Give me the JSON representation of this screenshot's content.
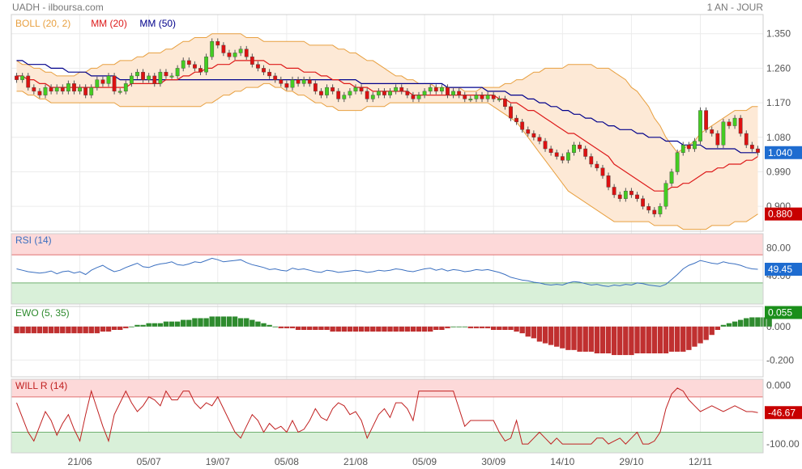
{
  "header": {
    "symbol_source": "UADH - ilboursa.com",
    "period": "1 AN - JOUR"
  },
  "colors": {
    "boll": "#e8a040",
    "boll_fill": "#fde9d6",
    "mm20": "#dd1a1a",
    "mm50": "#00008b",
    "candle_up": "#44cc22",
    "candle_down": "#dd1111",
    "rsi": "#3a6fc0",
    "ewo_pos": "#2e8b2e",
    "ewo_neg": "#c03030",
    "willr": "#c02020",
    "zone_red": "#fdd9d9",
    "zone_green": "#d9f0d9",
    "badge_blue": "#1e6cd0",
    "badge_red": "#c80000",
    "badge_green": "#1b8f1b"
  },
  "chart_data": [
    {
      "type": "candlestick",
      "name": "price",
      "legend": [
        {
          "label": "BOLL (20, 2)",
          "color": "#e8a040"
        },
        {
          "label": "MM (20)",
          "color": "#dd1a1a"
        },
        {
          "label": "MM (50)",
          "color": "#00008b"
        }
      ],
      "y_ticks": [
        "1.350",
        "1.260",
        "1.170",
        "1.080",
        "0.990",
        "0.900"
      ],
      "ylim": [
        0.835,
        1.4
      ],
      "last_price_label": "1.040",
      "low_label": "0.880",
      "x_ticks": [
        {
          "index": 11,
          "label": "21/06"
        },
        {
          "index": 23,
          "label": "05/07"
        },
        {
          "index": 35,
          "label": "19/07"
        },
        {
          "index": 47,
          "label": "05/08"
        },
        {
          "index": 59,
          "label": "21/08"
        },
        {
          "index": 71,
          "label": "05/09"
        },
        {
          "index": 83,
          "label": "30/09"
        },
        {
          "index": 95,
          "label": "14/10"
        },
        {
          "index": 107,
          "label": "29/10"
        },
        {
          "index": 119,
          "label": "12/11"
        }
      ],
      "close": [
        1.23,
        1.24,
        1.21,
        1.2,
        1.19,
        1.21,
        1.2,
        1.21,
        1.2,
        1.22,
        1.2,
        1.21,
        1.19,
        1.21,
        1.23,
        1.22,
        1.24,
        1.2,
        1.2,
        1.22,
        1.24,
        1.25,
        1.23,
        1.24,
        1.22,
        1.25,
        1.24,
        1.24,
        1.26,
        1.28,
        1.27,
        1.26,
        1.25,
        1.29,
        1.33,
        1.32,
        1.3,
        1.29,
        1.3,
        1.31,
        1.29,
        1.27,
        1.26,
        1.25,
        1.24,
        1.23,
        1.22,
        1.21,
        1.23,
        1.22,
        1.23,
        1.22,
        1.2,
        1.19,
        1.21,
        1.2,
        1.18,
        1.19,
        1.2,
        1.21,
        1.2,
        1.18,
        1.19,
        1.2,
        1.19,
        1.2,
        1.21,
        1.2,
        1.19,
        1.18,
        1.19,
        1.2,
        1.21,
        1.2,
        1.21,
        1.19,
        1.2,
        1.19,
        1.18,
        1.18,
        1.19,
        1.18,
        1.19,
        1.18,
        1.18,
        1.16,
        1.13,
        1.12,
        1.1,
        1.09,
        1.08,
        1.07,
        1.05,
        1.04,
        1.03,
        1.02,
        1.04,
        1.06,
        1.05,
        1.03,
        1.01,
        1.0,
        0.98,
        0.95,
        0.93,
        0.92,
        0.94,
        0.93,
        0.92,
        0.9,
        0.89,
        0.88,
        0.9,
        0.96,
        0.99,
        1.04,
        1.06,
        1.05,
        1.07,
        1.15,
        1.1,
        1.09,
        1.06,
        1.12,
        1.11,
        1.13,
        1.09,
        1.06,
        1.05,
        1.04
      ],
      "mm20": [
        1.24,
        1.24,
        1.23,
        1.23,
        1.22,
        1.22,
        1.21,
        1.21,
        1.21,
        1.21,
        1.21,
        1.21,
        1.21,
        1.21,
        1.21,
        1.21,
        1.21,
        1.21,
        1.21,
        1.21,
        1.22,
        1.22,
        1.22,
        1.22,
        1.22,
        1.22,
        1.23,
        1.23,
        1.23,
        1.24,
        1.24,
        1.25,
        1.25,
        1.26,
        1.26,
        1.27,
        1.27,
        1.27,
        1.28,
        1.28,
        1.28,
        1.28,
        1.28,
        1.28,
        1.27,
        1.27,
        1.27,
        1.26,
        1.26,
        1.26,
        1.25,
        1.25,
        1.25,
        1.24,
        1.24,
        1.23,
        1.23,
        1.22,
        1.22,
        1.21,
        1.21,
        1.21,
        1.2,
        1.2,
        1.2,
        1.2,
        1.2,
        1.2,
        1.2,
        1.19,
        1.19,
        1.19,
        1.19,
        1.19,
        1.19,
        1.19,
        1.19,
        1.19,
        1.19,
        1.19,
        1.19,
        1.19,
        1.19,
        1.19,
        1.18,
        1.18,
        1.17,
        1.17,
        1.16,
        1.15,
        1.15,
        1.14,
        1.13,
        1.12,
        1.11,
        1.1,
        1.09,
        1.09,
        1.08,
        1.07,
        1.06,
        1.05,
        1.04,
        1.03,
        1.01,
        1.0,
        0.99,
        0.98,
        0.97,
        0.96,
        0.95,
        0.94,
        0.94,
        0.94,
        0.95,
        0.95,
        0.96,
        0.96,
        0.97,
        0.98,
        0.99,
        0.99,
        1.0,
        1.0,
        1.01,
        1.01,
        1.01,
        1.02,
        1.02,
        1.03
      ],
      "mm50": [
        1.28,
        1.28,
        1.27,
        1.27,
        1.27,
        1.27,
        1.26,
        1.26,
        1.26,
        1.25,
        1.25,
        1.25,
        1.25,
        1.24,
        1.24,
        1.24,
        1.24,
        1.24,
        1.23,
        1.23,
        1.23,
        1.23,
        1.23,
        1.23,
        1.23,
        1.23,
        1.23,
        1.23,
        1.23,
        1.23,
        1.23,
        1.23,
        1.23,
        1.23,
        1.23,
        1.23,
        1.23,
        1.23,
        1.23,
        1.23,
        1.23,
        1.23,
        1.23,
        1.23,
        1.23,
        1.23,
        1.23,
        1.23,
        1.23,
        1.23,
        1.23,
        1.23,
        1.23,
        1.23,
        1.23,
        1.23,
        1.23,
        1.23,
        1.23,
        1.23,
        1.22,
        1.22,
        1.22,
        1.22,
        1.22,
        1.22,
        1.22,
        1.22,
        1.22,
        1.22,
        1.22,
        1.22,
        1.22,
        1.22,
        1.22,
        1.21,
        1.21,
        1.21,
        1.21,
        1.21,
        1.21,
        1.21,
        1.2,
        1.2,
        1.2,
        1.2,
        1.19,
        1.19,
        1.19,
        1.18,
        1.18,
        1.17,
        1.17,
        1.16,
        1.16,
        1.15,
        1.15,
        1.14,
        1.14,
        1.13,
        1.13,
        1.12,
        1.12,
        1.11,
        1.11,
        1.1,
        1.1,
        1.1,
        1.09,
        1.09,
        1.08,
        1.08,
        1.08,
        1.07,
        1.07,
        1.07,
        1.06,
        1.06,
        1.06,
        1.06,
        1.05,
        1.05,
        1.05,
        1.05,
        1.05,
        1.05,
        1.04,
        1.04,
        1.04,
        1.04
      ],
      "boll_upper": [
        1.28,
        1.27,
        1.27,
        1.26,
        1.26,
        1.25,
        1.25,
        1.24,
        1.24,
        1.24,
        1.24,
        1.25,
        1.25,
        1.26,
        1.26,
        1.27,
        1.27,
        1.27,
        1.28,
        1.28,
        1.28,
        1.29,
        1.29,
        1.3,
        1.3,
        1.3,
        1.31,
        1.31,
        1.32,
        1.33,
        1.33,
        1.34,
        1.34,
        1.34,
        1.35,
        1.35,
        1.35,
        1.35,
        1.35,
        1.35,
        1.34,
        1.34,
        1.34,
        1.33,
        1.33,
        1.33,
        1.33,
        1.33,
        1.33,
        1.33,
        1.33,
        1.32,
        1.32,
        1.32,
        1.32,
        1.32,
        1.31,
        1.31,
        1.3,
        1.3,
        1.29,
        1.28,
        1.28,
        1.27,
        1.26,
        1.25,
        1.24,
        1.24,
        1.23,
        1.23,
        1.22,
        1.22,
        1.22,
        1.21,
        1.21,
        1.21,
        1.21,
        1.21,
        1.2,
        1.2,
        1.2,
        1.21,
        1.21,
        1.21,
        1.21,
        1.22,
        1.22,
        1.23,
        1.23,
        1.24,
        1.25,
        1.25,
        1.26,
        1.26,
        1.26,
        1.26,
        1.27,
        1.27,
        1.27,
        1.27,
        1.27,
        1.26,
        1.26,
        1.26,
        1.25,
        1.24,
        1.23,
        1.21,
        1.2,
        1.18,
        1.16,
        1.13,
        1.11,
        1.08,
        1.06,
        1.04,
        1.05,
        1.06,
        1.07,
        1.09,
        1.1,
        1.11,
        1.12,
        1.13,
        1.14,
        1.15,
        1.15,
        1.15,
        1.16,
        1.16
      ],
      "boll_lower": [
        1.2,
        1.2,
        1.19,
        1.19,
        1.18,
        1.18,
        1.17,
        1.17,
        1.17,
        1.17,
        1.17,
        1.17,
        1.17,
        1.17,
        1.17,
        1.17,
        1.17,
        1.17,
        1.16,
        1.16,
        1.16,
        1.16,
        1.16,
        1.16,
        1.16,
        1.16,
        1.16,
        1.16,
        1.16,
        1.16,
        1.16,
        1.16,
        1.16,
        1.17,
        1.17,
        1.18,
        1.19,
        1.19,
        1.2,
        1.2,
        1.21,
        1.21,
        1.21,
        1.22,
        1.22,
        1.21,
        1.21,
        1.2,
        1.2,
        1.19,
        1.19,
        1.18,
        1.17,
        1.17,
        1.16,
        1.16,
        1.15,
        1.15,
        1.15,
        1.15,
        1.15,
        1.16,
        1.16,
        1.16,
        1.16,
        1.17,
        1.17,
        1.17,
        1.17,
        1.17,
        1.17,
        1.17,
        1.17,
        1.17,
        1.17,
        1.17,
        1.17,
        1.17,
        1.17,
        1.17,
        1.17,
        1.17,
        1.17,
        1.16,
        1.15,
        1.14,
        1.13,
        1.12,
        1.1,
        1.08,
        1.06,
        1.04,
        1.02,
        1.0,
        0.98,
        0.96,
        0.94,
        0.93,
        0.92,
        0.91,
        0.9,
        0.89,
        0.88,
        0.87,
        0.86,
        0.86,
        0.86,
        0.86,
        0.86,
        0.86,
        0.86,
        0.85,
        0.85,
        0.85,
        0.85,
        0.85,
        0.84,
        0.84,
        0.84,
        0.84,
        0.84,
        0.85,
        0.85,
        0.85,
        0.85,
        0.86,
        0.86,
        0.86,
        0.87,
        0.88
      ]
    },
    {
      "type": "line",
      "name": "rsi",
      "legend": "RSI (14)",
      "y_ticks": [
        "80.00",
        "40.00"
      ],
      "ylim": [
        0,
        100
      ],
      "zones": {
        "overbought": 70,
        "oversold": 30
      },
      "last_label": "49.45",
      "values": [
        50,
        48,
        46,
        45,
        44,
        45,
        47,
        43,
        46,
        47,
        44,
        46,
        42,
        48,
        52,
        55,
        50,
        46,
        48,
        52,
        55,
        58,
        53,
        52,
        55,
        57,
        58,
        60,
        56,
        55,
        57,
        60,
        59,
        62,
        65,
        63,
        60,
        61,
        62,
        63,
        59,
        56,
        54,
        52,
        49,
        50,
        48,
        47,
        51,
        49,
        50,
        48,
        46,
        45,
        48,
        47,
        45,
        46,
        47,
        48,
        47,
        45,
        46,
        48,
        47,
        48,
        50,
        49,
        47,
        46,
        48,
        50,
        51,
        48,
        50,
        47,
        49,
        48,
        46,
        47,
        49,
        48,
        49,
        47,
        45,
        42,
        38,
        36,
        34,
        33,
        31,
        30,
        28,
        27,
        28,
        27,
        30,
        32,
        31,
        29,
        27,
        28,
        26,
        25,
        27,
        26,
        28,
        27,
        30,
        29,
        27,
        26,
        25,
        28,
        35,
        42,
        50,
        55,
        58,
        62,
        60,
        58,
        57,
        60,
        58,
        57,
        55,
        52,
        50,
        49.45
      ]
    },
    {
      "type": "bar",
      "name": "ewo",
      "legend": "EWO (5, 35)",
      "y_ticks": [
        "0.000",
        "-0.200"
      ],
      "ylim": [
        -0.3,
        0.12
      ],
      "last_label": "0.055",
      "values": [
        -0.04,
        -0.04,
        -0.04,
        -0.04,
        -0.04,
        -0.04,
        -0.04,
        -0.04,
        -0.04,
        -0.04,
        -0.04,
        -0.04,
        -0.04,
        -0.04,
        -0.04,
        -0.03,
        -0.03,
        -0.02,
        -0.02,
        -0.01,
        0.0,
        0.01,
        0.01,
        0.02,
        0.02,
        0.02,
        0.03,
        0.03,
        0.03,
        0.04,
        0.04,
        0.05,
        0.05,
        0.05,
        0.06,
        0.06,
        0.06,
        0.06,
        0.06,
        0.05,
        0.05,
        0.04,
        0.03,
        0.02,
        0.01,
        0.0,
        -0.01,
        -0.01,
        -0.01,
        -0.02,
        -0.02,
        -0.02,
        -0.02,
        -0.02,
        -0.02,
        -0.03,
        -0.03,
        -0.03,
        -0.03,
        -0.03,
        -0.03,
        -0.03,
        -0.03,
        -0.03,
        -0.03,
        -0.03,
        -0.03,
        -0.03,
        -0.03,
        -0.03,
        -0.03,
        -0.03,
        -0.03,
        -0.02,
        -0.02,
        -0.01,
        0.0,
        0.0,
        0.0,
        -0.01,
        -0.01,
        -0.01,
        -0.01,
        -0.02,
        -0.02,
        -0.02,
        -0.02,
        -0.03,
        -0.04,
        -0.06,
        -0.07,
        -0.09,
        -0.1,
        -0.11,
        -0.12,
        -0.13,
        -0.14,
        -0.14,
        -0.15,
        -0.15,
        -0.15,
        -0.16,
        -0.16,
        -0.16,
        -0.17,
        -0.17,
        -0.17,
        -0.17,
        -0.16,
        -0.16,
        -0.16,
        -0.16,
        -0.16,
        -0.16,
        -0.15,
        -0.15,
        -0.15,
        -0.14,
        -0.12,
        -0.1,
        -0.08,
        -0.05,
        -0.02,
        0.01,
        0.02,
        0.03,
        0.04,
        0.05,
        0.055,
        0.055,
        0.055,
        0.055
      ]
    },
    {
      "type": "line",
      "name": "willr",
      "legend": "WILL R (14)",
      "y_ticks": [
        "0.000",
        "-100.00"
      ],
      "ylim": [
        -115,
        10
      ],
      "zones": {
        "overbought": -20,
        "oversold": -80
      },
      "last_label": "-46.67",
      "values": [
        -30,
        -55,
        -80,
        -95,
        -70,
        -45,
        -60,
        -85,
        -65,
        -50,
        -75,
        -95,
        -50,
        -10,
        -40,
        -70,
        -95,
        -50,
        -30,
        -10,
        -30,
        -45,
        -35,
        -20,
        -25,
        -35,
        -10,
        -25,
        -25,
        -10,
        -10,
        -30,
        -40,
        -30,
        -35,
        -20,
        -40,
        -60,
        -80,
        -90,
        -70,
        -50,
        -60,
        -80,
        -65,
        -75,
        -70,
        -80,
        -60,
        -80,
        -75,
        -60,
        -40,
        -55,
        -60,
        -40,
        -30,
        -35,
        -50,
        -45,
        -60,
        -90,
        -70,
        -50,
        -40,
        -55,
        -30,
        -30,
        -40,
        -60,
        -10,
        -10,
        -10,
        -10,
        -10,
        -10,
        -10,
        -40,
        -70,
        -60,
        -60,
        -60,
        -60,
        -60,
        -80,
        -95,
        -90,
        -60,
        -100,
        -100,
        -90,
        -80,
        -90,
        -100,
        -90,
        -100,
        -100,
        -100,
        -100,
        -100,
        -100,
        -90,
        -90,
        -100,
        -95,
        -90,
        -100,
        -90,
        -80,
        -100,
        -100,
        -95,
        -80,
        -40,
        -15,
        -5,
        -10,
        -25,
        -35,
        -45,
        -40,
        -35,
        -40,
        -45,
        -40,
        -35,
        -40,
        -45,
        -45,
        -46.67
      ]
    }
  ]
}
